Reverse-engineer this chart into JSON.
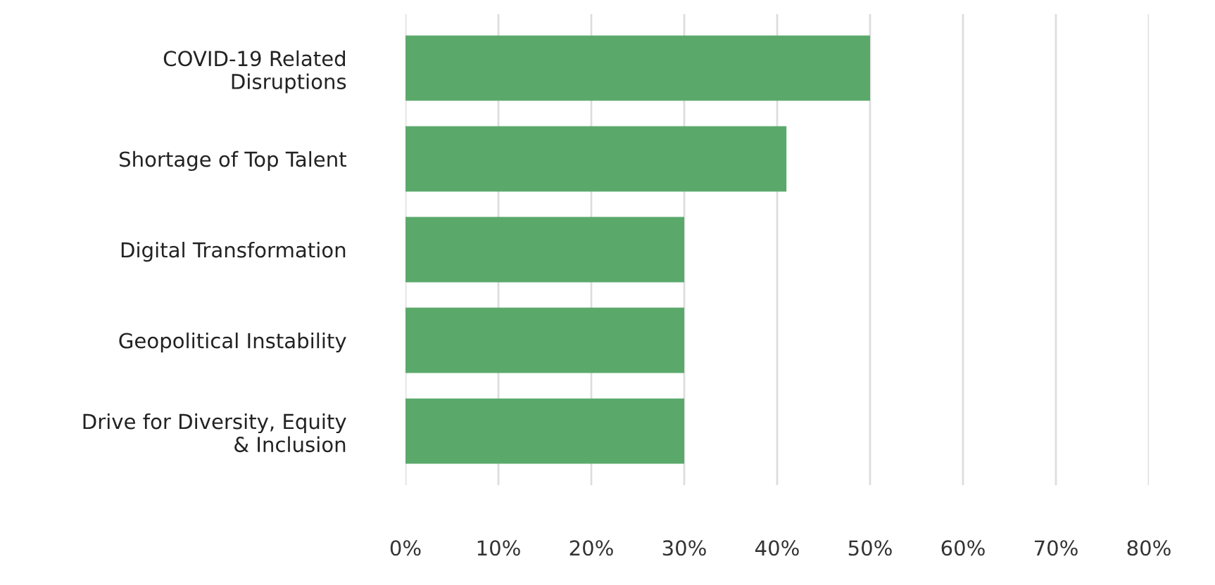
{
  "chart_data": {
    "type": "bar",
    "orientation": "horizontal",
    "categories": [
      "COVID-19 Related\nDisruptions",
      "Shortage of Top Talent",
      "Digital Transformation",
      "Geopolitical Instability",
      "Drive for Diversity, Equity\n& Inclusion"
    ],
    "values": [
      50,
      41,
      30,
      30,
      30
    ],
    "color": "#5aa96b",
    "xlim": [
      0,
      80
    ],
    "xticks": [
      {
        "value": 0,
        "label": "0%"
      },
      {
        "value": 10,
        "label": "10%"
      },
      {
        "value": 20,
        "label": "20%"
      },
      {
        "value": 30,
        "label": "30%"
      },
      {
        "value": 40,
        "label": "40%"
      },
      {
        "value": 50,
        "label": "50%"
      },
      {
        "value": 60,
        "label": "60%"
      },
      {
        "value": 70,
        "label": "70%"
      },
      {
        "value": 80,
        "label": "80%"
      }
    ],
    "grid": "x",
    "legend": false
  }
}
